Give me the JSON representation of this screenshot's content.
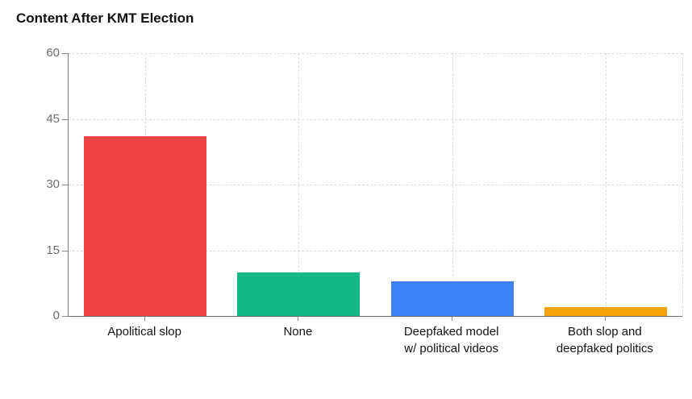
{
  "chart_data": {
    "type": "bar",
    "title": "Content After KMT Election",
    "categories": [
      "Apolitical slop",
      "None",
      "Deepfaked model w/ political videos",
      "Both slop and deepfaked politics"
    ],
    "category_label_lines": [
      [
        "Apolitical slop"
      ],
      [
        "None"
      ],
      [
        "Deepfaked model",
        "w/ political videos"
      ],
      [
        "Both slop and",
        "deepfaked politics"
      ]
    ],
    "values": [
      41,
      10,
      8,
      2
    ],
    "colors": [
      "#ee4343",
      "#12b886",
      "#3d82f4",
      "#f4a406"
    ],
    "xlabel": "",
    "ylabel": "",
    "ylim": [
      0,
      60
    ],
    "yticks": [
      0,
      15,
      30,
      45,
      60
    ],
    "grid": "dashed light-gray horizontal lines at yticks and vertical lines at category centers; dashed right border",
    "legend": "none",
    "bar_width_fraction": 0.8
  }
}
